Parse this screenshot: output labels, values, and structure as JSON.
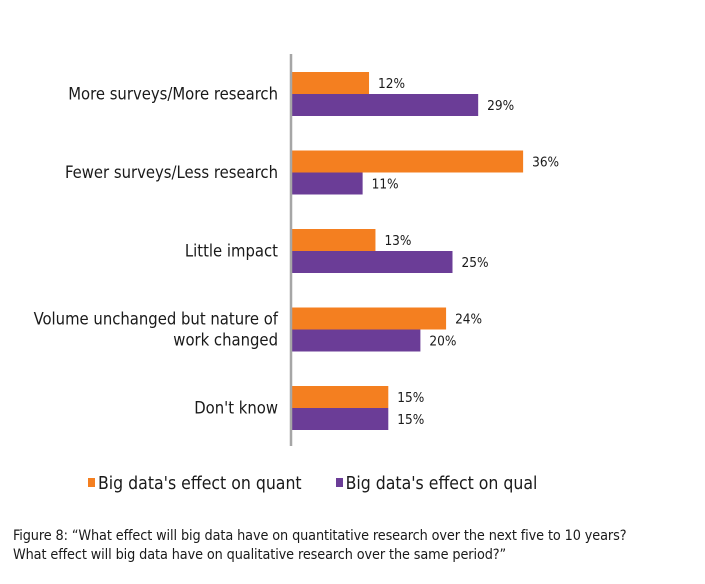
{
  "chart_data": {
    "type": "bar",
    "orientation": "horizontal",
    "title": "",
    "xlabel": "",
    "ylabel": "",
    "xlim": [
      0,
      40
    ],
    "grid": false,
    "value_suffix": "%",
    "categories": [
      [
        "More surveys/More research"
      ],
      [
        "Fewer surveys/Less research"
      ],
      [
        "Little impact"
      ],
      [
        "Volume unchanged but nature of",
        "work changed"
      ],
      [
        "Don't know"
      ]
    ],
    "series": [
      {
        "name": "Big data's effect on quant",
        "color": "#f47f20",
        "values": [
          12,
          36,
          13,
          24,
          15
        ]
      },
      {
        "name": "Big data's effect on qual",
        "color": "#6b3d97",
        "values": [
          29,
          11,
          25,
          20,
          15
        ]
      }
    ],
    "legend_position": "bottom",
    "axis_color": "#a6a6a6"
  },
  "caption": {
    "line1": "Figure 8: “What effect will big data have on quantitative research over the next five to 10 years?",
    "line2": "What effect will big data have on qualitative research over the same period?”"
  }
}
